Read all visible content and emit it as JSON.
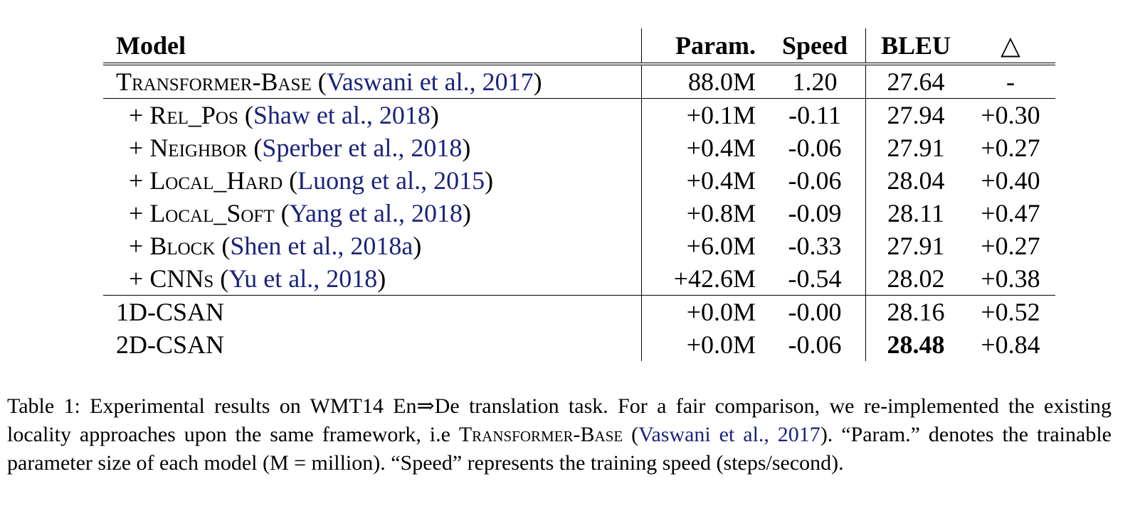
{
  "table": {
    "headers": {
      "model": "Model",
      "param": "Param.",
      "speed": "Speed",
      "bleu": "BLEU",
      "delta": "△"
    },
    "baseline": {
      "name": "Transformer-Base",
      "cite": "Vaswani et al., 2017",
      "param": "88.0M",
      "speed": "1.20",
      "bleu": "27.64",
      "delta": "-"
    },
    "rows": [
      {
        "name": "Rel_Pos",
        "cite": "Shaw et al., 2018",
        "param": "+0.1M",
        "speed": "-0.11",
        "bleu": "27.94",
        "delta": "+0.30"
      },
      {
        "name": "Neighbor",
        "cite": "Sperber et al., 2018",
        "param": "+0.4M",
        "speed": "-0.06",
        "bleu": "27.91",
        "delta": "+0.27"
      },
      {
        "name": "Local_Hard",
        "cite": "Luong et al., 2015",
        "param": "+0.4M",
        "speed": "-0.06",
        "bleu": "28.04",
        "delta": "+0.40"
      },
      {
        "name": "Local_Soft",
        "cite": "Yang et al., 2018",
        "param": "+0.8M",
        "speed": "-0.09",
        "bleu": "28.11",
        "delta": "+0.47"
      },
      {
        "name": "Block",
        "cite": "Shen et al., 2018a",
        "param": "+6.0M",
        "speed": "-0.33",
        "bleu": "27.91",
        "delta": "+0.27"
      },
      {
        "name": "CNNs",
        "cite": "Yu et al., 2018",
        "param": "+42.6M",
        "speed": "-0.54",
        "bleu": "28.02",
        "delta": "+0.38"
      }
    ],
    "ours": [
      {
        "name": "1D-CSAN",
        "param": "+0.0M",
        "speed": "-0.00",
        "bleu": "28.16",
        "delta": "+0.52"
      },
      {
        "name": "2D-CSAN",
        "param": "+0.0M",
        "speed": "-0.06",
        "bleu": "28.48",
        "delta": "+0.84"
      }
    ]
  },
  "caption": {
    "part1": "Table 1: Experimental results on WMT14 En⇒De translation task. For a fair comparison, we re-implemented the existing locality approaches upon the same framework, i.e ",
    "model": "Transformer-Base",
    "cite": "Vaswani et al., 2017",
    "part2": "“Param.” denotes the trainable parameter size of each model (M = million). “Speed” represents the training speed (steps/second)."
  }
}
